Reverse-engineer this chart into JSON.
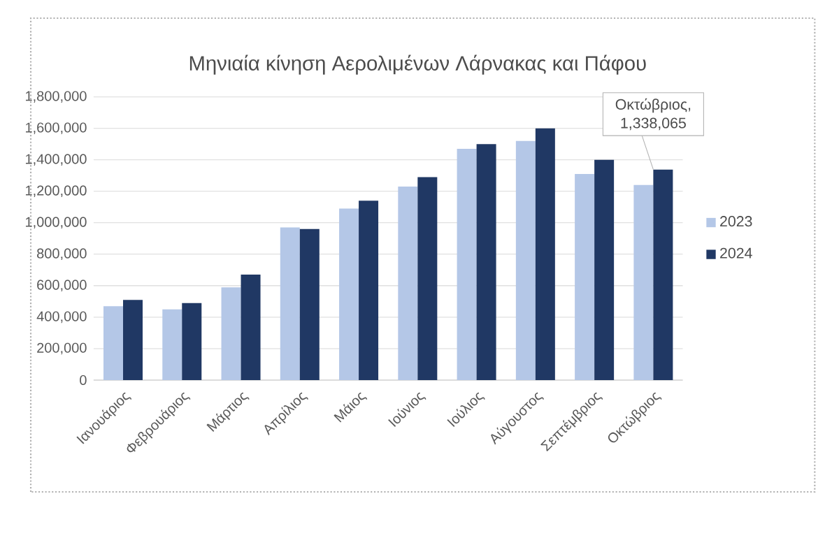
{
  "chart_data": {
    "type": "bar",
    "title": "Μηνιαία κίνηση Αερολιμένων Λάρνακας και Πάφου",
    "categories": [
      "Ιανουάριος",
      "Φεβρουάριος",
      "Μάρτιος",
      "Απρίλιος",
      "Μάιος",
      "Ιούνιος",
      "Ιούλιος",
      "Αύγουστος",
      "Σεπτέμβριος",
      "Οκτώβριος"
    ],
    "series": [
      {
        "name": "2023",
        "color": "#b4c7e7",
        "values": [
          470000,
          450000,
          590000,
          970000,
          1090000,
          1230000,
          1470000,
          1520000,
          1310000,
          1240000
        ]
      },
      {
        "name": "2024",
        "color": "#203864",
        "values": [
          510000,
          490000,
          670000,
          960000,
          1140000,
          1290000,
          1500000,
          1600000,
          1400000,
          1338065
        ]
      }
    ],
    "ylim": [
      0,
      1800000
    ],
    "yticks": [
      {
        "value": 0,
        "label": "0"
      },
      {
        "value": 200000,
        "label": "200,000"
      },
      {
        "value": 400000,
        "label": "400,000"
      },
      {
        "value": 600000,
        "label": "600,000"
      },
      {
        "value": 800000,
        "label": "800,000"
      },
      {
        "value": 1000000,
        "label": "1,000,000"
      },
      {
        "value": 1200000,
        "label": "1,200,000"
      },
      {
        "value": 1400000,
        "label": "1,400,000"
      },
      {
        "value": 1600000,
        "label": "1,600,000"
      },
      {
        "value": 1800000,
        "label": "1,800,000"
      }
    ],
    "grid": "y",
    "legend": "right",
    "annotations": [
      {
        "text": "Οκτώβριος, 1,338,065",
        "x": "Οκτώβριος",
        "y": 1338065
      }
    ]
  }
}
